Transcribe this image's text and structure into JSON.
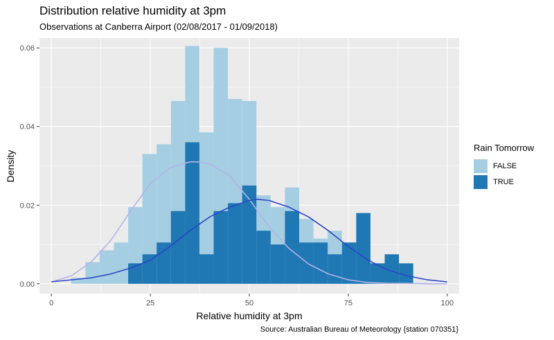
{
  "title": "Distribution relative humidity at 3pm",
  "subtitle": "Observations at Canberra Airport (02/08/2017 - 01/09/2018)",
  "caption": "Source: Australian Bureau of Meteorology {station 070351}",
  "legend": {
    "title": "Rain Tomorrow",
    "items": [
      {
        "label": "FALSE",
        "color": "#a6cee3"
      },
      {
        "label": "TRUE",
        "color": "#1f78b4"
      }
    ]
  },
  "chart_data": {
    "type": "bar",
    "title": "Distribution relative humidity at 3pm",
    "xlabel": "Relative humidity at 3pm",
    "ylabel": "Density",
    "xlim": [
      -3,
      103
    ],
    "ylim": [
      -0.0025,
      0.0625
    ],
    "x_ticks": [
      0,
      25,
      50,
      75,
      100
    ],
    "x_tick_labels": [
      "0",
      "25",
      "50",
      "75",
      "100"
    ],
    "y_ticks": [
      0.0,
      0.02,
      0.04,
      0.06
    ],
    "y_tick_labels": [
      "0.00",
      "0.02",
      "0.04",
      "0.06"
    ],
    "grid": true,
    "legend_position": "right",
    "bin_width": 3.6,
    "series": [
      {
        "name": "FALSE",
        "color": "#a6cee3",
        "bin_left": [
          5,
          8.6,
          12.2,
          15.8,
          19.4,
          23,
          26.6,
          30.2,
          33.8,
          37.4,
          41,
          44.6,
          48.2,
          51.8,
          55.4,
          59,
          62.6,
          66.2,
          69.8,
          73.4,
          77,
          80.6,
          84.2,
          87.8,
          91.4
        ],
        "density": [
          0.0015,
          0.0055,
          0.0085,
          0.0105,
          0.0195,
          0.033,
          0.0355,
          0.0465,
          0.0605,
          0.0385,
          0.06,
          0.047,
          0.0465,
          0.0225,
          0.0195,
          0.0245,
          0.0165,
          0.0115,
          0.0135,
          0.008,
          0.002,
          0.0005,
          0.0003,
          0.0003,
          0.0002
        ],
        "density_curve": {
          "x": [
            0,
            5,
            10,
            15,
            20,
            25,
            30,
            35,
            37,
            40,
            45,
            50,
            55,
            60,
            65,
            70,
            75,
            80,
            85,
            90,
            95,
            100
          ],
          "y": [
            0.0005,
            0.002,
            0.0055,
            0.011,
            0.0185,
            0.0255,
            0.0295,
            0.031,
            0.031,
            0.0305,
            0.0275,
            0.0215,
            0.0145,
            0.009,
            0.005,
            0.0025,
            0.001,
            0.0003,
            0.0001,
            0.0001,
            0.0,
            0.0
          ]
        }
      },
      {
        "name": "TRUE",
        "color": "#1f78b4",
        "bin_left": [
          5,
          8.6,
          12.2,
          15.8,
          19.4,
          23,
          26.6,
          30.2,
          33.8,
          37.4,
          41,
          44.6,
          48.2,
          51.8,
          55.4,
          59,
          62.6,
          66.2,
          69.8,
          73.4,
          77,
          80.6,
          84.2,
          87.8,
          91.4
        ],
        "density": [
          0,
          0,
          0,
          0,
          0.0052,
          0.0075,
          0.0105,
          0.0185,
          0.036,
          0.0075,
          0.0185,
          0.0205,
          0.025,
          0.0135,
          0.01,
          0.0185,
          0.0105,
          0.0105,
          0.0075,
          0.0105,
          0.018,
          0.0052,
          0.0075,
          0.0052,
          0
        ],
        "density_curve": {
          "x": [
            0,
            10,
            15,
            20,
            25,
            30,
            35,
            40,
            45,
            50,
            52,
            55,
            60,
            65,
            70,
            75,
            80,
            85,
            90,
            95,
            100
          ],
          "y": [
            0.0005,
            0.0015,
            0.0025,
            0.004,
            0.006,
            0.0095,
            0.0135,
            0.017,
            0.0195,
            0.0212,
            0.0215,
            0.0212,
            0.0195,
            0.017,
            0.0135,
            0.0095,
            0.006,
            0.0035,
            0.002,
            0.001,
            0.0005
          ]
        }
      }
    ],
    "curve_colors": [
      "#b3b3e6",
      "#2a45c6"
    ]
  }
}
